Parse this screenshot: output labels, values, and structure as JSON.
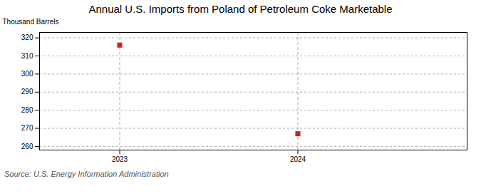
{
  "chart_data": {
    "type": "scatter",
    "title": "Annual U.S. Imports from Poland of Petroleum Coke Marketable",
    "ylabel": "Thousand Barrels",
    "source": "Source: U.S. Energy Information Administration",
    "x": [
      2023,
      2024
    ],
    "values": [
      316,
      267
    ],
    "color": "#cc2222",
    "marker": "square",
    "xlim": [
      2022.55,
      2024.95
    ],
    "xticks": [
      2023,
      2024
    ],
    "ylim": [
      258,
      323
    ],
    "yticks": [
      260,
      270,
      280,
      290,
      300,
      310,
      320
    ],
    "grid": true
  }
}
